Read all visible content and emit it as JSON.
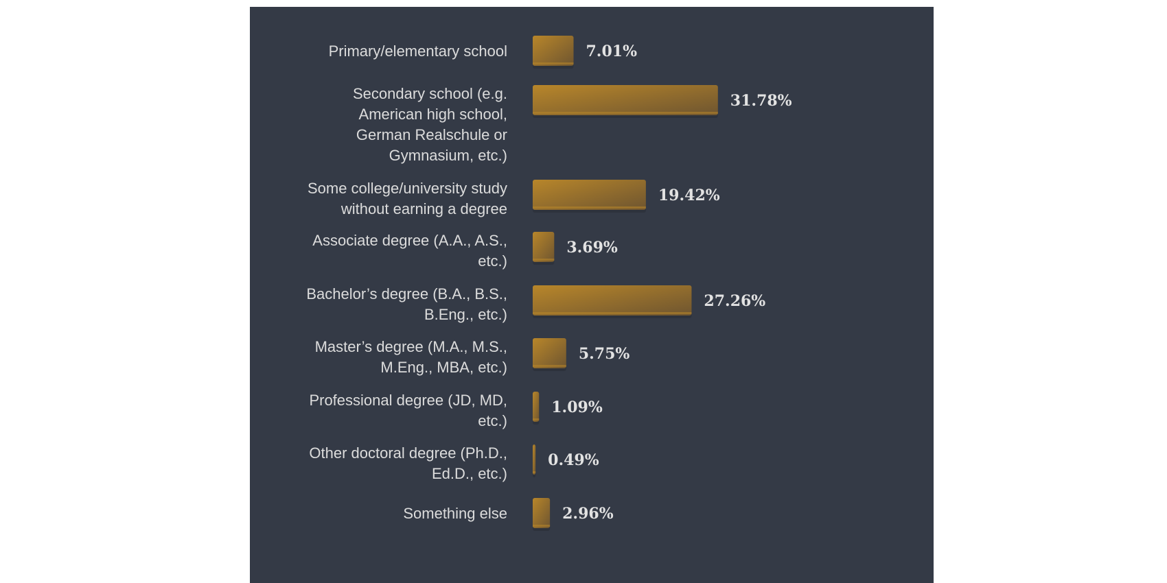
{
  "chart_data": {
    "type": "bar",
    "orientation": "horizontal",
    "categories": [
      [
        "Primary/elementary school"
      ],
      [
        "Secondary school (e.g.",
        "American high school,",
        "German Realschule or",
        "Gymnasium, etc.)"
      ],
      [
        "Some college/university study",
        "without earning a degree"
      ],
      [
        "Associate degree (A.A., A.S.,",
        "etc.)"
      ],
      [
        "Bachelor’s degree (B.A., B.S.,",
        "B.Eng., etc.)"
      ],
      [
        "Master’s degree (M.A., M.S.,",
        "M.Eng., MBA, etc.)"
      ],
      [
        "Professional degree (JD, MD,",
        "etc.)"
      ],
      [
        "Other doctoral degree (Ph.D.,",
        "Ed.D., etc.)"
      ],
      [
        "Something else"
      ]
    ],
    "values": [
      7.01,
      31.78,
      19.42,
      3.69,
      27.26,
      5.75,
      1.09,
      0.49,
      2.96
    ],
    "value_labels": [
      "7.01%",
      "31.78%",
      "19.42%",
      "3.69%",
      "27.26%",
      "5.75%",
      "1.09%",
      "0.49%",
      "2.96%"
    ],
    "grid": false,
    "legend": "none",
    "colors": {
      "background": "#343a46",
      "bar_light": "#b8862a",
      "bar_dark": "#6e5530",
      "label": "#dcdcdc",
      "value": "#e2e2e2"
    }
  }
}
